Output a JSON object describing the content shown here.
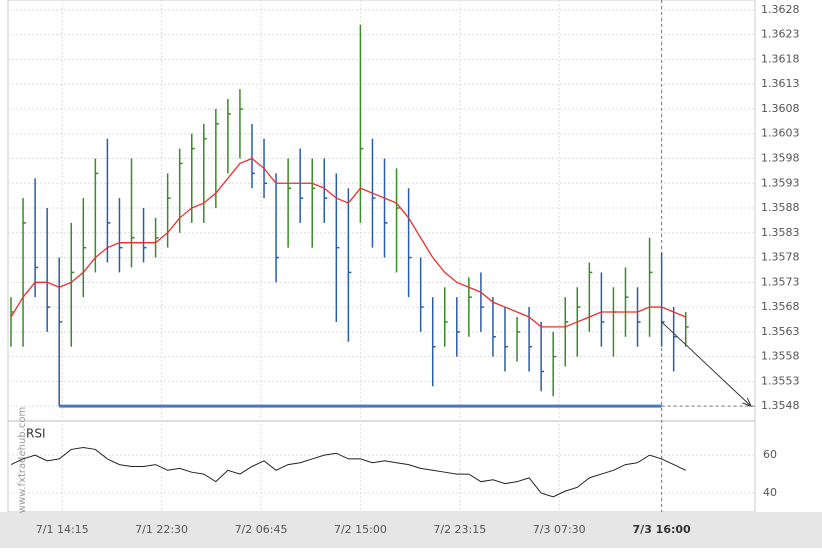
{
  "chart_data": [
    {
      "type": "ohlc",
      "watermark": "www.fxtradehub.com",
      "x": [
        10,
        11,
        12,
        13,
        14,
        15,
        16,
        17,
        18,
        19,
        20,
        21,
        22,
        23,
        24,
        25,
        26,
        27,
        28,
        29,
        30,
        31,
        32,
        33,
        34,
        35,
        36,
        37,
        38,
        39,
        40,
        41,
        42,
        43,
        44,
        45,
        46,
        47,
        48,
        49,
        50,
        51,
        52,
        53,
        54,
        55,
        56,
        57,
        58,
        59,
        60,
        61,
        62,
        63,
        64,
        65,
        66
      ],
      "high": [
        1.357,
        1.359,
        1.3594,
        1.3588,
        1.3578,
        1.3585,
        1.359,
        1.3598,
        1.3602,
        1.359,
        1.3598,
        1.3588,
        1.3586,
        1.3595,
        1.36,
        1.3603,
        1.3605,
        1.3608,
        1.361,
        1.3612,
        1.3605,
        1.3602,
        1.3595,
        1.3598,
        1.36,
        1.3598,
        1.3598,
        1.3595,
        1.3592,
        1.3625,
        1.3602,
        1.3598,
        1.3596,
        1.3592,
        1.3578,
        1.357,
        1.3572,
        1.357,
        1.3574,
        1.3575,
        1.357,
        1.3568,
        1.3566,
        1.3568,
        1.3565,
        1.3563,
        1.357,
        1.3572,
        1.3577,
        1.3575,
        1.3572,
        1.3576,
        1.3572,
        1.3582,
        1.3579,
        1.3568,
        1.3567
      ],
      "low": [
        1.356,
        1.356,
        1.357,
        1.3563,
        1.3548,
        1.356,
        1.357,
        1.3575,
        1.3577,
        1.3575,
        1.3576,
        1.3577,
        1.3578,
        1.358,
        1.3583,
        1.3585,
        1.3585,
        1.3588,
        1.3595,
        1.3598,
        1.3592,
        1.359,
        1.3573,
        1.358,
        1.3585,
        1.358,
        1.3585,
        1.3565,
        1.3561,
        1.3585,
        1.358,
        1.3578,
        1.3575,
        1.357,
        1.3563,
        1.3552,
        1.356,
        1.3558,
        1.3562,
        1.3563,
        1.3558,
        1.3555,
        1.3557,
        1.3555,
        1.3551,
        1.355,
        1.3556,
        1.3558,
        1.3563,
        1.356,
        1.3558,
        1.3562,
        1.356,
        1.3562,
        1.356,
        1.3555,
        1.356
      ],
      "close": [
        1.3567,
        1.3585,
        1.3576,
        1.3568,
        1.3565,
        1.3575,
        1.358,
        1.3595,
        1.3585,
        1.358,
        1.3582,
        1.358,
        1.3582,
        1.359,
        1.3597,
        1.36,
        1.3602,
        1.3605,
        1.3607,
        1.3608,
        1.3595,
        1.3593,
        1.3578,
        1.3592,
        1.359,
        1.3592,
        1.359,
        1.358,
        1.3575,
        1.36,
        1.359,
        1.3585,
        1.3588,
        1.3578,
        1.3568,
        1.356,
        1.3565,
        1.3563,
        1.357,
        1.3568,
        1.3562,
        1.356,
        1.3563,
        1.356,
        1.3555,
        1.3558,
        1.3565,
        1.3568,
        1.3575,
        1.3565,
        1.3567,
        1.357,
        1.3565,
        1.3575,
        1.3565,
        1.3562,
        1.3564
      ],
      "up_color": "#3a8a2a",
      "down_color": "#2a5ca8",
      "ma": {
        "color": "#e8312f",
        "values": [
          1.3566,
          1.357,
          1.3573,
          1.3573,
          1.3572,
          1.3573,
          1.3575,
          1.3578,
          1.358,
          1.3581,
          1.3581,
          1.3581,
          1.3581,
          1.3583,
          1.3586,
          1.3588,
          1.3589,
          1.3591,
          1.3594,
          1.3597,
          1.3598,
          1.3596,
          1.3593,
          1.3593,
          1.3593,
          1.3593,
          1.3592,
          1.359,
          1.3589,
          1.3592,
          1.3591,
          1.359,
          1.3589,
          1.3586,
          1.3582,
          1.3578,
          1.3575,
          1.3573,
          1.3572,
          1.3571,
          1.3569,
          1.3568,
          1.3567,
          1.3566,
          1.3564,
          1.3564,
          1.3564,
          1.3565,
          1.3566,
          1.3567,
          1.3567,
          1.3567,
          1.3567,
          1.3568,
          1.3568,
          1.3567,
          1.3566
        ]
      },
      "level": 1.3548,
      "level_from_x": 14,
      "level_color": "#4a78c0",
      "current_x": 64,
      "xlim": [
        9.75,
        71.75
      ],
      "xticks": [
        {
          "value": 14.25,
          "label": "7/1 14:15"
        },
        {
          "value": 22.5,
          "label": "7/1 22:30"
        },
        {
          "value": 30.75,
          "label": "7/2 06:45"
        },
        {
          "value": 39,
          "label": "7/2 15:00"
        },
        {
          "value": 47.25,
          "label": "7/2 23:15"
        },
        {
          "value": 55.5,
          "label": "7/3 07:30"
        },
        {
          "value": 64,
          "label": "7/3 16:00"
        }
      ],
      "ylim": [
        1.3545,
        1.363
      ],
      "yticks": [
        1.3628,
        1.3623,
        1.3618,
        1.3613,
        1.3608,
        1.3603,
        1.3598,
        1.3593,
        1.3588,
        1.3583,
        1.3578,
        1.3573,
        1.3568,
        1.3563,
        1.3558,
        1.3553,
        1.3548
      ],
      "grid": true
    },
    {
      "type": "line",
      "title": "RSI",
      "color": "#222222",
      "values": [
        55,
        58,
        60,
        57,
        58,
        63,
        64,
        63,
        58,
        55,
        54,
        54,
        55,
        52,
        53,
        51,
        50,
        46,
        52,
        50,
        54,
        57,
        52,
        55,
        56,
        58,
        60,
        61,
        58,
        58,
        56,
        57,
        56,
        55,
        53,
        52,
        51,
        50,
        50,
        46,
        47,
        45,
        46,
        48,
        40,
        38,
        41,
        43,
        48,
        50,
        52,
        55,
        56,
        60,
        58,
        55,
        52
      ],
      "ylim": [
        30,
        78
      ],
      "yticks": [
        60,
        40
      ]
    }
  ]
}
